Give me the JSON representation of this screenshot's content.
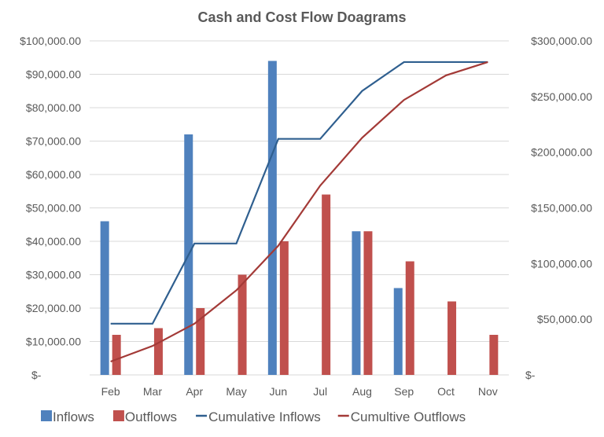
{
  "chart_data": {
    "type": "bar+line",
    "title": "Cash and Cost Flow Doagrams",
    "categories": [
      "Feb",
      "Mar",
      "Apr",
      "May",
      "Jun",
      "Jul",
      "Aug",
      "Sep",
      "Oct",
      "Nov"
    ],
    "bar_series": [
      {
        "name": "Inflows",
        "color": "#4f81bd",
        "axis": "left",
        "values": [
          46000,
          0,
          72000,
          0,
          94000,
          0,
          43000,
          26000,
          0,
          0
        ]
      },
      {
        "name": "Outflows",
        "color": "#c0504d",
        "axis": "left",
        "values": [
          12000,
          14000,
          20000,
          30000,
          40000,
          54000,
          43000,
          34000,
          22000,
          12000
        ]
      }
    ],
    "line_series": [
      {
        "name": "Cumulative Inflows",
        "color": "#2f5f8f",
        "axis": "right",
        "values": [
          46000,
          46000,
          118000,
          118000,
          212000,
          212000,
          255000,
          281000,
          281000,
          281000
        ]
      },
      {
        "name": "Cumultive Outflows",
        "color": "#a33a37",
        "axis": "right",
        "values": [
          12000,
          26000,
          46000,
          76000,
          116000,
          170000,
          213000,
          247000,
          269000,
          281000
        ]
      }
    ],
    "left_axis": {
      "ylim": [
        0,
        100000
      ],
      "ticks": [
        "$-",
        "$10,000.00",
        "$20,000.00",
        "$30,000.00",
        "$40,000.00",
        "$50,000.00",
        "$60,000.00",
        "$70,000.00",
        "$80,000.00",
        "$90,000.00",
        "$100,000.00"
      ]
    },
    "right_axis": {
      "ylim": [
        0,
        300000
      ],
      "ticks": [
        "$-",
        "$50,000.00",
        "$100,000.00",
        "$150,000.00",
        "$200,000.00",
        "$250,000.00",
        "$300,000.00"
      ]
    },
    "grid": true,
    "legend": "bottom"
  }
}
